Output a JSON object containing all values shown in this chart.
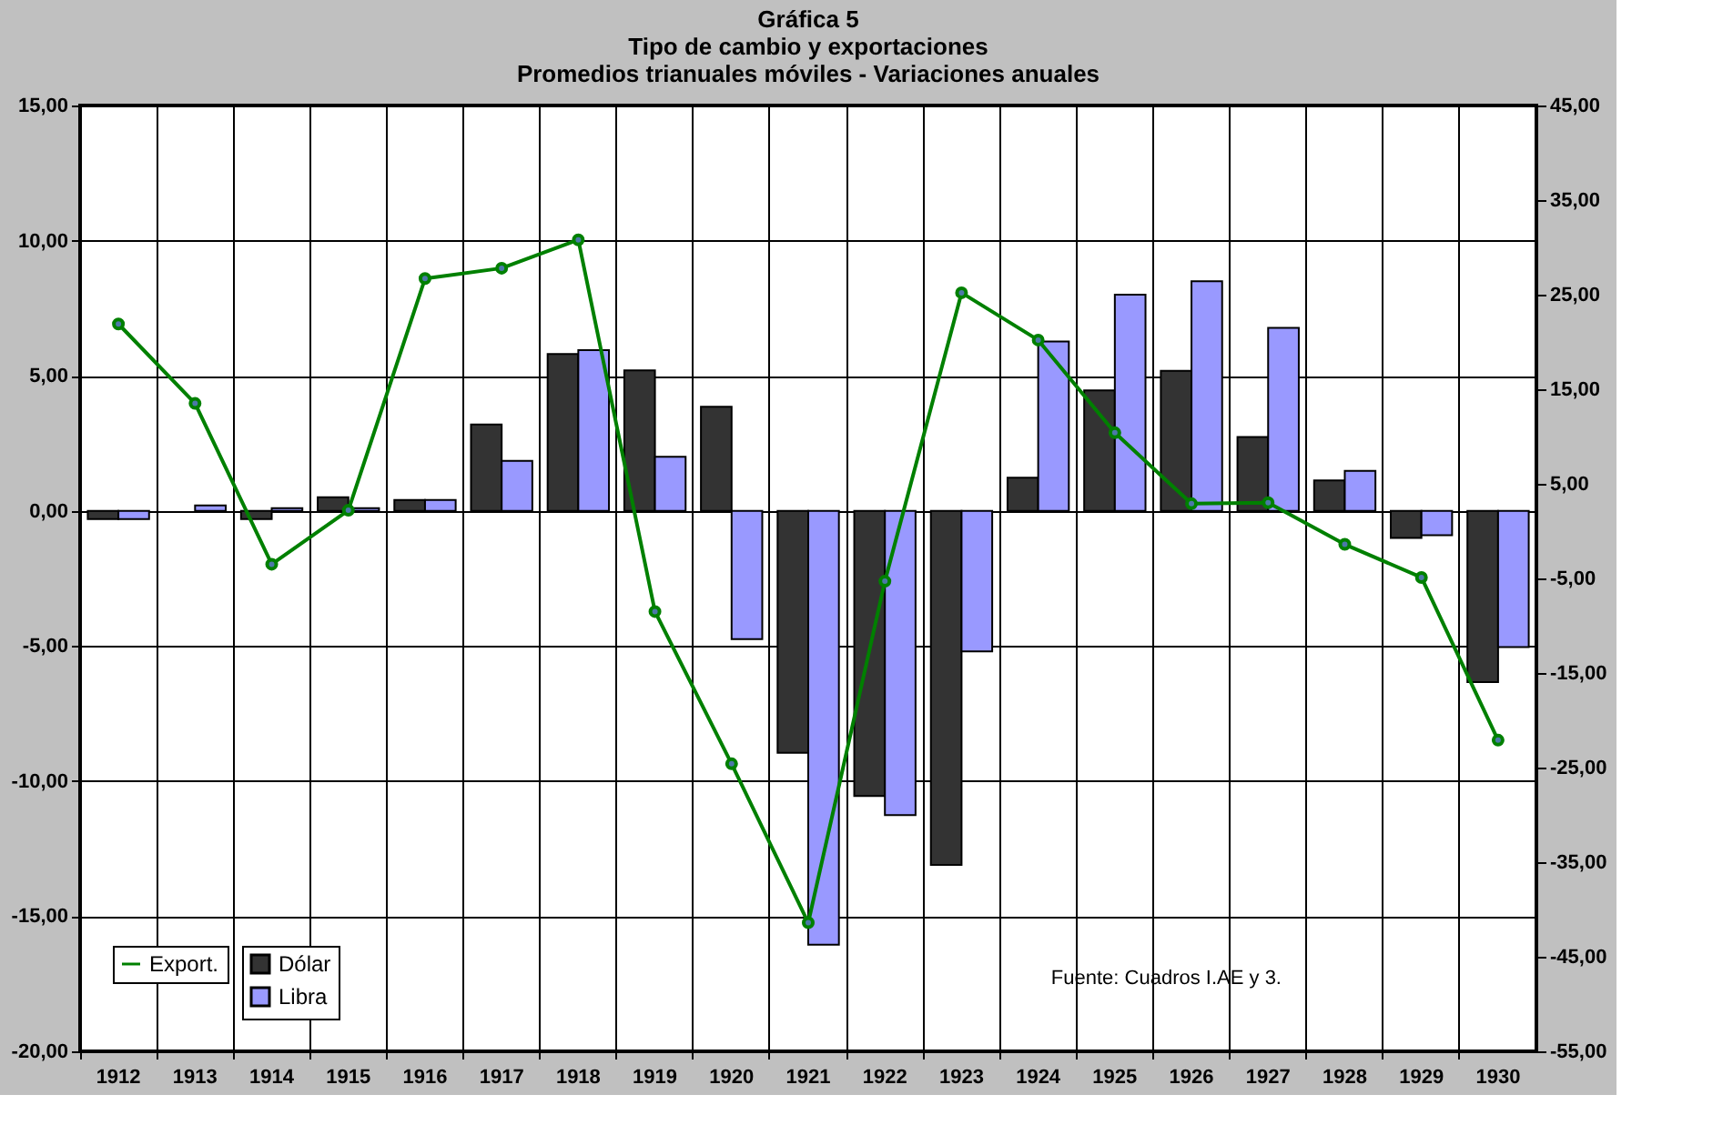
{
  "chart_data": {
    "type": "bar",
    "title": [
      "Gráfica 5",
      "Tipo de cambio y exportaciones",
      "Promedios trianuales móviles - Variaciones anuales"
    ],
    "categories": [
      "1912",
      "1913",
      "1914",
      "1915",
      "1916",
      "1917",
      "1918",
      "1919",
      "1920",
      "1921",
      "1922",
      "1923",
      "1924",
      "1925",
      "1926",
      "1927",
      "1928",
      "1929",
      "1930"
    ],
    "series": [
      {
        "name": "Dólar",
        "color": "#333333",
        "values": [
          -0.3,
          null,
          -0.3,
          0.5,
          0.4,
          3.2,
          5.8,
          5.2,
          3.85,
          -8.95,
          -10.55,
          -13.1,
          1.23,
          4.46,
          5.18,
          2.73,
          1.13,
          -1.0,
          -6.34
        ]
      },
      {
        "name": "Libra",
        "color": "#9999ff",
        "values": [
          -0.3,
          0.2,
          0.1,
          0.1,
          0.4,
          1.85,
          5.95,
          2.0,
          -4.75,
          -16.05,
          -11.26,
          -5.2,
          6.27,
          8.0,
          8.5,
          6.77,
          1.48,
          -0.9,
          -5.04
        ]
      },
      {
        "name": "Export.",
        "color": "#008000",
        "type": "line",
        "axis": "y2",
        "marker": "circle",
        "values": [
          21.9,
          13.5,
          -3.5,
          2.2,
          26.7,
          27.8,
          30.8,
          -8.5,
          -24.6,
          -41.4,
          -5.3,
          25.2,
          20.2,
          10.4,
          2.9,
          3.0,
          -1.4,
          -4.9,
          -22.1
        ]
      }
    ],
    "ylim": [
      -20,
      15
    ],
    "yticks": [
      {
        "value": -20,
        "label": "-20,00"
      },
      {
        "value": -15,
        "label": "-15,00"
      },
      {
        "value": -10,
        "label": "-10,00"
      },
      {
        "value": -5,
        "label": "-5,00"
      },
      {
        "value": 0,
        "label": "0,00"
      },
      {
        "value": 5,
        "label": "5,00"
      },
      {
        "value": 10,
        "label": "10,00"
      },
      {
        "value": 15,
        "label": "15,00"
      }
    ],
    "y2lim": [
      -55,
      45
    ],
    "y2ticks": [
      {
        "value": -55,
        "label": "-55,00"
      },
      {
        "value": -45,
        "label": "-45,00"
      },
      {
        "value": -35,
        "label": "-35,00"
      },
      {
        "value": -25,
        "label": "-25,00"
      },
      {
        "value": -15,
        "label": "-15,00"
      },
      {
        "value": -5,
        "label": "-5,00"
      },
      {
        "value": 5,
        "label": "5,00"
      },
      {
        "value": 15,
        "label": "15,00"
      },
      {
        "value": 25,
        "label": "25,00"
      },
      {
        "value": 35,
        "label": "35,00"
      },
      {
        "value": 45,
        "label": "45,00"
      }
    ],
    "grid": true,
    "legend": "bottom left",
    "annotations": [
      "Fuente: Cuadros I.AE y 3."
    ]
  }
}
